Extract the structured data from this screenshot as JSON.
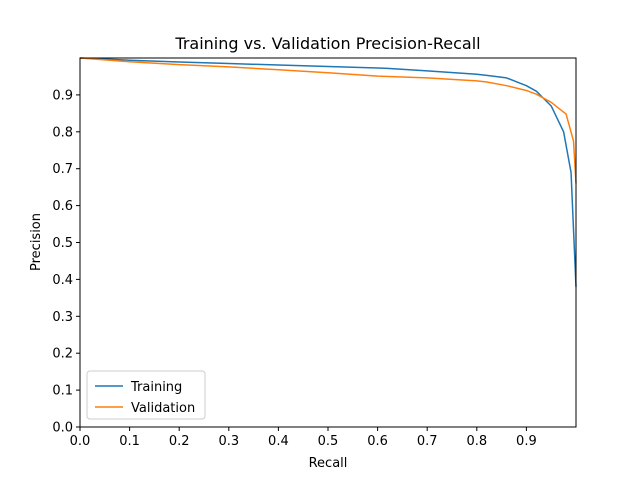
{
  "chart_data": {
    "type": "line",
    "title": "Training vs. Validation Precision-Recall",
    "xlabel": "Recall",
    "ylabel": "Precision",
    "xlim": [
      0,
      1.0
    ],
    "ylim": [
      0,
      1.0
    ],
    "x_ticks": [
      "0.0",
      "0.1",
      "0.2",
      "0.3",
      "0.4",
      "0.5",
      "0.6",
      "0.7",
      "0.8",
      "0.9"
    ],
    "y_ticks": [
      "0.0",
      "0.1",
      "0.2",
      "0.3",
      "0.4",
      "0.5",
      "0.6",
      "0.7",
      "0.8",
      "0.9"
    ],
    "grid": false,
    "legend": "lower-left",
    "series": [
      {
        "name": "Training",
        "color": "#1f77b4",
        "x": [
          0.0,
          0.1,
          0.2,
          0.3,
          0.4,
          0.5,
          0.6,
          0.62,
          0.7,
          0.8,
          0.82,
          0.86,
          0.9,
          0.92,
          0.95,
          0.975,
          0.99,
          1.0
        ],
        "y": [
          1.0,
          0.994,
          0.989,
          0.985,
          0.981,
          0.977,
          0.973,
          0.972,
          0.965,
          0.956,
          0.953,
          0.946,
          0.925,
          0.91,
          0.87,
          0.8,
          0.69,
          0.38
        ]
      },
      {
        "name": "Validation",
        "color": "#ff7f0e",
        "x": [
          0.0,
          0.05,
          0.1,
          0.2,
          0.3,
          0.4,
          0.5,
          0.6,
          0.7,
          0.8,
          0.82,
          0.86,
          0.9,
          0.92,
          0.95,
          0.98,
          0.995,
          1.0
        ],
        "y": [
          1.0,
          0.995,
          0.99,
          0.982,
          0.976,
          0.968,
          0.96,
          0.951,
          0.946,
          0.938,
          0.935,
          0.925,
          0.912,
          0.902,
          0.88,
          0.848,
          0.775,
          0.66
        ]
      }
    ]
  }
}
